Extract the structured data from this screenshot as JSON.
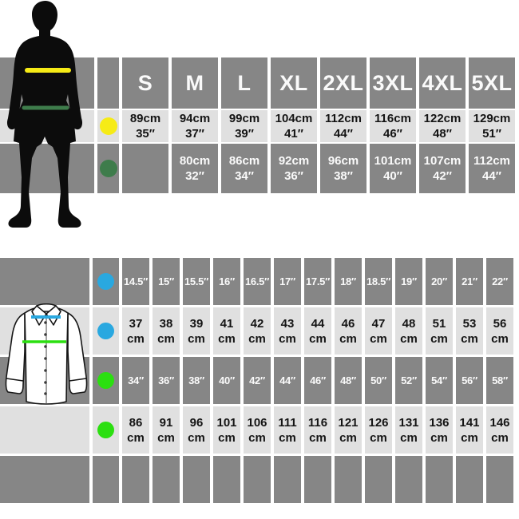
{
  "colors": {
    "dark": "#868686",
    "light": "#e0e0e0",
    "yellow": "#f6eb16",
    "dgreen": "#3e7c4b",
    "blue": "#29a8e0",
    "green": "#2bdf10"
  },
  "icons": {
    "figure": "man-silhouette",
    "shirt": "dress-shirt-illustration",
    "chest_marker": "yellow-dot",
    "waist_marker": "dark-green-dot",
    "collar_marker": "blue-dot",
    "shirt_chest_marker": "green-dot"
  },
  "top_table": {
    "sizes": [
      "S",
      "M",
      "L",
      "XL",
      "2XL",
      "3XL",
      "4XL",
      "5XL"
    ],
    "chest_values": [
      "89cm\n35″",
      "94cm\n37″",
      "99cm\n39″",
      "104cm\n41″",
      "112cm\n44″",
      "116cm\n46″",
      "122cm\n48″",
      "129cm\n51″"
    ],
    "waist_values": [
      "",
      "80cm\n32″",
      "86cm\n34″",
      "92cm\n36″",
      "96cm\n38″",
      "101cm\n40″",
      "107cm\n42″",
      "112cm\n44″"
    ]
  },
  "bottom_table": {
    "collar_inch_values": [
      "14.5″",
      "15″",
      "15.5″",
      "16″",
      "16.5″",
      "17″",
      "17.5″",
      "18″",
      "18.5″",
      "19″",
      "20″",
      "21″",
      "22″"
    ],
    "collar_cm_values": [
      "37\ncm",
      "38\ncm",
      "39\ncm",
      "41\ncm",
      "42\ncm",
      "43\ncm",
      "44\ncm",
      "46\ncm",
      "47\ncm",
      "48\ncm",
      "51\ncm",
      "53\ncm",
      "56\ncm"
    ],
    "chest_inch_values": [
      "34″",
      "36″",
      "38″",
      "40″",
      "42″",
      "44″",
      "46″",
      "48″",
      "50″",
      "52″",
      "54″",
      "56″",
      "58″"
    ],
    "chest_cm_values": [
      "86\ncm",
      "91\ncm",
      "96\ncm",
      "101\ncm",
      "106\ncm",
      "111\ncm",
      "116\ncm",
      "121\ncm",
      "126\ncm",
      "131\ncm",
      "136\ncm",
      "141\ncm",
      "146\ncm"
    ]
  }
}
